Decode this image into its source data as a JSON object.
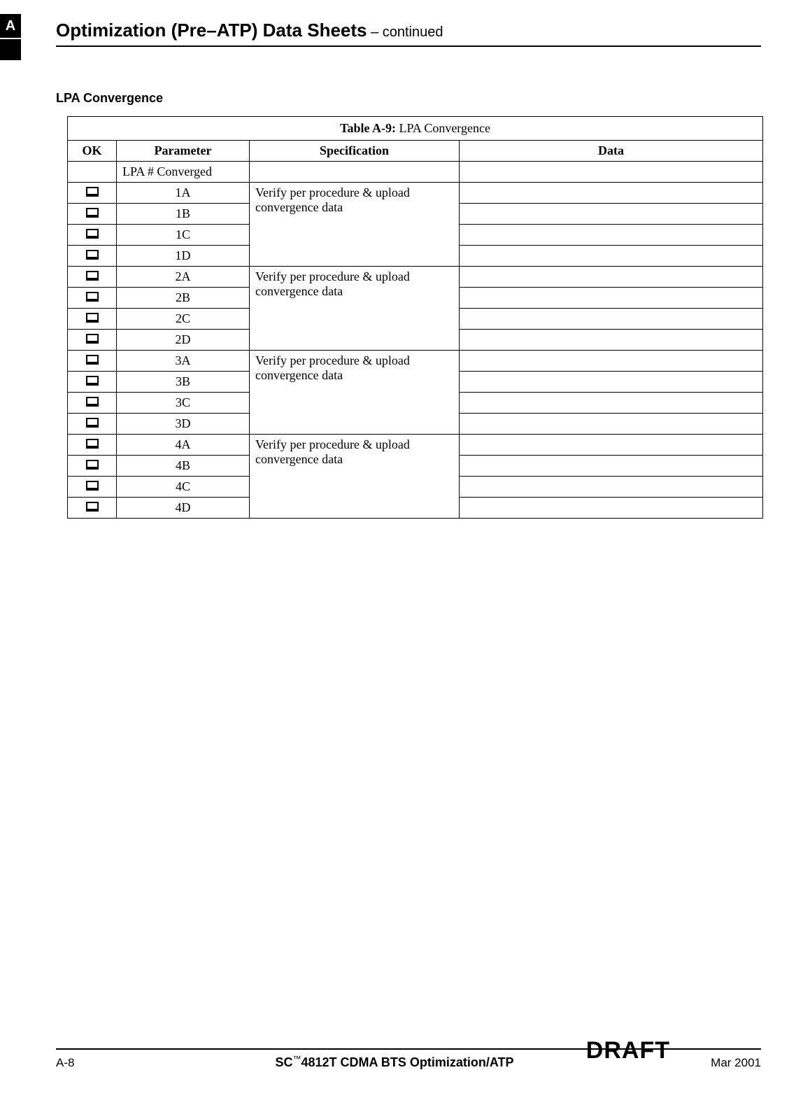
{
  "tab": "A",
  "header": {
    "title": "Optimization (Pre–ATP) Data Sheets",
    "suffix": " – continued"
  },
  "section_title": "LPA Convergence",
  "table": {
    "caption_prefix": "Table A-9:",
    "caption_text": " LPA Convergence",
    "columns": [
      "OK",
      "Parameter",
      "Specification",
      "Data"
    ],
    "header_row_param": "LPA # Converged",
    "groups": [
      {
        "spec": "Verify per procedure & upload convergence data",
        "params": [
          "1A",
          "1B",
          "1C",
          "1D"
        ]
      },
      {
        "spec": "Verify per procedure & upload convergence data",
        "params": [
          "2A",
          "2B",
          "2C",
          "2D"
        ]
      },
      {
        "spec": "Verify per procedure & upload convergence data",
        "params": [
          "3A",
          "3B",
          "3C",
          "3D"
        ]
      },
      {
        "spec": "Verify per procedure & upload convergence data",
        "params": [
          "4A",
          "4B",
          "4C",
          "4D"
        ]
      }
    ]
  },
  "footer": {
    "left": "A-8",
    "center_prefix": "SC",
    "center_tm": "™",
    "center_rest": "4812T CDMA BTS Optimization/ATP",
    "right": "Mar 2001",
    "draft": "DRAFT"
  }
}
